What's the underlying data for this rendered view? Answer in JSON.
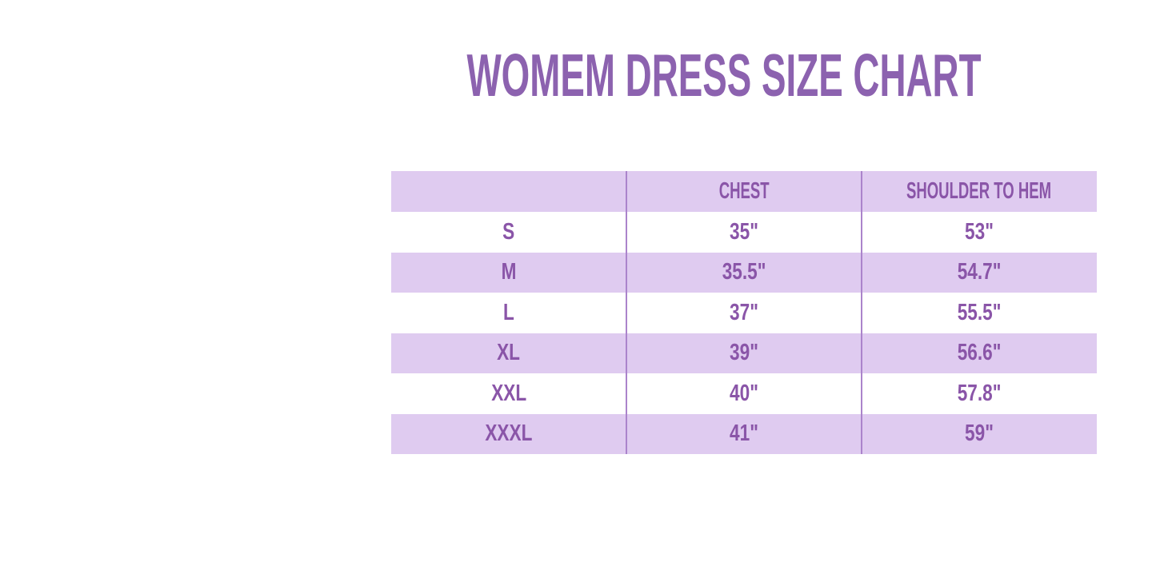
{
  "colors": {
    "background": "#FFFFFF",
    "title_text": "#8C62AF",
    "table_text": "#8A55A8",
    "band_fill": "#DFCBF0",
    "column_divider": "#AB84CB"
  },
  "chart_data": {
    "type": "table",
    "title": "WOMEM DRESS SIZE CHART",
    "columns": [
      "",
      "CHEST",
      "SHOULDER TO HEM"
    ],
    "rows": [
      [
        "S",
        "35\"",
        "53\""
      ],
      [
        "M",
        "35.5\"",
        "54.7\""
      ],
      [
        "L",
        "37\"",
        "55.5\""
      ],
      [
        "XL",
        "39\"",
        "56.6\""
      ],
      [
        "XXL",
        "40\"",
        "57.8\""
      ],
      [
        "XXXL",
        "41\"",
        "59\""
      ]
    ],
    "layout": {
      "stripe_pattern": "header and even rows lavender, odd rows white",
      "columns_equal_width": true,
      "grid": "vertical dividers only"
    }
  }
}
